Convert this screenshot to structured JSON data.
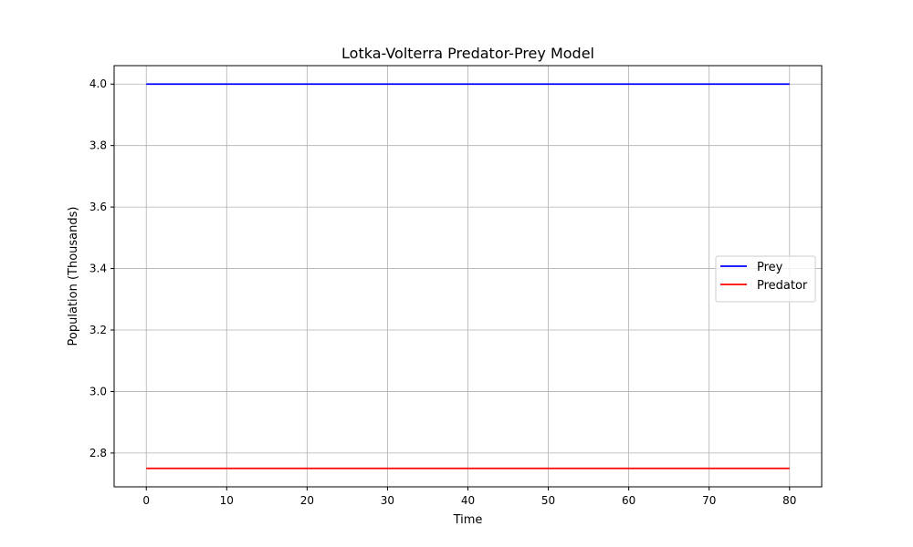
{
  "chart_data": {
    "type": "line",
    "title": "Lotka-Volterra Predator-Prey Model",
    "xlabel": "Time",
    "ylabel": "Population (Thousands)",
    "xlim": [
      -4,
      84
    ],
    "ylim": [
      2.69,
      4.06
    ],
    "x_ticks": [
      0,
      10,
      20,
      30,
      40,
      50,
      60,
      70,
      80
    ],
    "y_ticks": [
      2.8,
      3.0,
      3.2,
      3.4,
      3.6,
      3.8,
      4.0
    ],
    "x_tick_labels": [
      "0",
      "10",
      "20",
      "30",
      "40",
      "50",
      "60",
      "70",
      "80"
    ],
    "y_tick_labels": [
      "2.8",
      "3.0",
      "3.2",
      "3.4",
      "3.6",
      "3.8",
      "4.0"
    ],
    "grid": true,
    "legend_position": "center-right",
    "series": [
      {
        "name": "Prey",
        "color": "#0000ff",
        "x": [
          0,
          80
        ],
        "y": [
          4.0,
          4.0
        ]
      },
      {
        "name": "Predator",
        "color": "#ff0000",
        "x": [
          0,
          80
        ],
        "y": [
          2.75,
          2.75
        ]
      }
    ]
  }
}
